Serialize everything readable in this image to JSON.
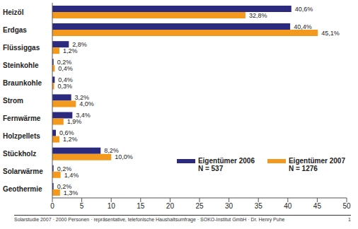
{
  "chart_data": {
    "type": "bar",
    "orientation": "horizontal",
    "categories": [
      "Heizöl",
      "Erdgas",
      "Flüssiggas",
      "Steinkohle",
      "Braunkohle",
      "Strom",
      "Fernwärme",
      "Holzpellets",
      "Stückholz",
      "Solarwärme",
      "Geothermie"
    ],
    "series": [
      {
        "name": "Eigentümer 2006",
        "sample_label": "N = 537",
        "color": "#2b2a7e",
        "values": [
          40.6,
          40.4,
          2.8,
          0.2,
          0.4,
          3.2,
          3.4,
          0.6,
          8.2,
          0.2,
          0.2
        ],
        "value_labels": [
          "40,6%",
          "40,4%",
          "2,8%",
          "0,2%",
          "0,4%",
          "3,2%",
          "3,4%",
          "0,6%",
          "8,2%",
          "0,2%",
          "0,2%"
        ]
      },
      {
        "name": "Eigentümer 2007",
        "sample_label": "N = 1276",
        "color": "#f39a1e",
        "values": [
          32.8,
          45.1,
          1.2,
          0.4,
          0.3,
          4.0,
          1.9,
          1.2,
          10.0,
          1.4,
          1.3
        ],
        "value_labels": [
          "32,8%",
          "45,1%",
          "1,2%",
          "0,4%",
          "0,3%",
          "4,0%",
          "1,9%",
          "1,2%",
          "10,0%",
          "1,4%",
          "1,3%"
        ]
      }
    ],
    "xlim": [
      0,
      50
    ],
    "xticks": [
      0,
      5,
      10,
      15,
      20,
      25,
      30,
      35,
      40,
      45,
      50
    ],
    "grid": false,
    "data_labels": true,
    "legend": "lower right",
    "footer": "Solarstudie 2007 · 2000 Personen · repräsentative, telefonische Haushaltsumfrage · SOKO-Institut GmbH · Dr. Henry Puhe",
    "page_number": "1"
  }
}
